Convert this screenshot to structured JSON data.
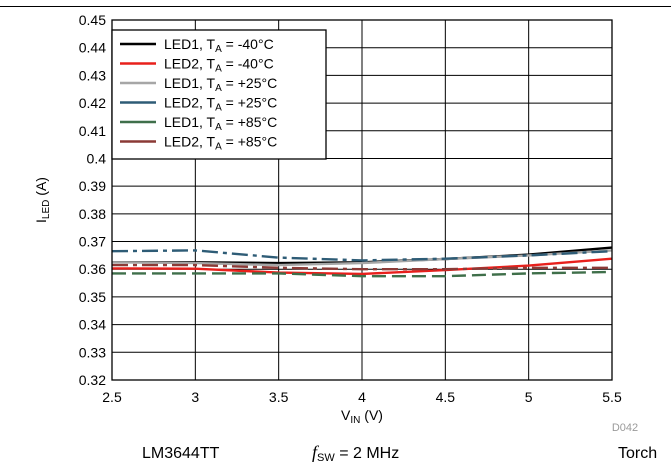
{
  "chart_data": {
    "type": "line",
    "xlabel": "V",
    "xlabel_sub": "IN",
    "xlabel_unit": " (V)",
    "ylabel": "I",
    "ylabel_sub": "LED",
    "ylabel_unit": " (A)",
    "xlim": [
      2.5,
      5.5
    ],
    "ylim": [
      0.32,
      0.45
    ],
    "x_ticks": [
      "2.5",
      "3",
      "3.5",
      "4",
      "4.5",
      "5",
      "5.5"
    ],
    "y_ticks": [
      "0.32",
      "0.33",
      "0.34",
      "0.35",
      "0.36",
      "0.37",
      "0.38",
      "0.39",
      "0.4",
      "0.41",
      "0.42",
      "0.43",
      "0.44",
      "0.45"
    ],
    "grid": true,
    "legend_position": "top-left",
    "series": [
      {
        "name": "LED1, T_A = -40°C",
        "label": {
          "a": "LED1, T",
          "sub": "A",
          "b": " = -40°C"
        },
        "color": "#000000",
        "dash": "solid",
        "x": [
          2.5,
          3.0,
          3.5,
          4.0,
          4.5,
          5.0,
          5.5
        ],
        "y": [
          0.3625,
          0.3625,
          0.3622,
          0.3625,
          0.3637,
          0.3653,
          0.3678
        ]
      },
      {
        "name": "LED2, T_A = -40°C",
        "label": {
          "a": "LED2, T",
          "sub": "A",
          "b": " = -40°C"
        },
        "color": "#e8201c",
        "dash": "solid",
        "x": [
          2.5,
          3.0,
          3.5,
          4.0,
          4.5,
          5.0,
          5.5
        ],
        "y": [
          0.3603,
          0.3602,
          0.3588,
          0.3583,
          0.3597,
          0.3613,
          0.3638
        ]
      },
      {
        "name": "LED1, T_A = +25°C",
        "label": {
          "a": "LED1, T",
          "sub": "A",
          "b": " = +25°C"
        },
        "color": "#a6a6a6",
        "dash": "solid",
        "x": [
          2.5,
          3.0,
          3.5,
          4.0,
          4.5,
          5.0,
          5.5
        ],
        "y": [
          0.3625,
          0.3622,
          0.3615,
          0.3622,
          0.3637,
          0.365,
          0.3668
        ]
      },
      {
        "name": "LED2, T_A = +25°C",
        "label": {
          "a": "LED2, T",
          "sub": "A",
          "b": " = +25°C"
        },
        "color": "#2e5c76",
        "dash": "dashdot",
        "x": [
          2.5,
          3.0,
          3.5,
          4.0,
          4.5,
          5.0,
          5.5
        ],
        "y": [
          0.3665,
          0.3668,
          0.3642,
          0.3632,
          0.3638,
          0.365,
          0.3665
        ]
      },
      {
        "name": "LED1, T_A = +85°C",
        "label": {
          "a": "LED1, T",
          "sub": "A",
          "b": " = +85°C"
        },
        "color": "#3f6f4a",
        "dash": "dashed",
        "x": [
          2.5,
          3.0,
          3.5,
          4.0,
          4.5,
          5.0,
          5.5
        ],
        "y": [
          0.3585,
          0.3585,
          0.3585,
          0.3575,
          0.3575,
          0.3585,
          0.359
        ]
      },
      {
        "name": "LED2, T_A = +85°C",
        "label": {
          "a": "LED2, T",
          "sub": "A",
          "b": " = +85°C"
        },
        "color": "#8b3a36",
        "dash": "dashdot",
        "x": [
          2.5,
          3.0,
          3.5,
          4.0,
          4.5,
          5.0,
          5.5
        ],
        "y": [
          0.3615,
          0.3615,
          0.3605,
          0.36,
          0.36,
          0.3605,
          0.3605
        ]
      }
    ]
  },
  "figure_id": "D042",
  "footer": {
    "device": "LM3644TT",
    "fsw_symbol": "f",
    "fsw_sub": "SW",
    "fsw_value": " = 2 MHz",
    "mode": "Torch"
  },
  "colors": {
    "grid": "#000000",
    "legend_border": "#000000",
    "background": "#ffffff"
  }
}
